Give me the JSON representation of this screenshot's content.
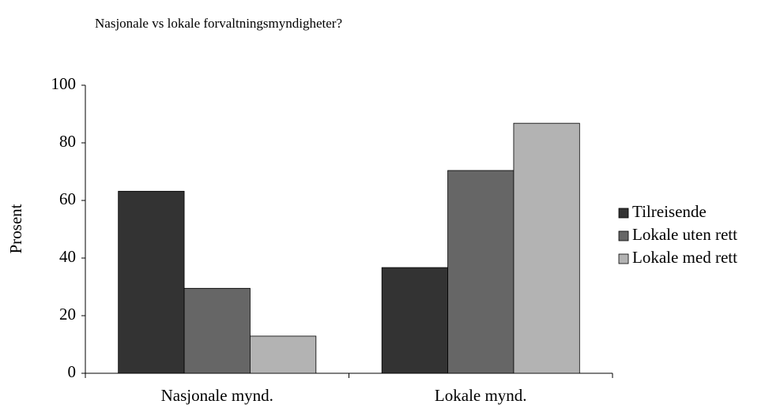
{
  "chart_data": {
    "type": "bar",
    "title": "Nasjonale vs lokale forvaltningsmyndigheter?",
    "y_label": "Prosent",
    "categories": [
      "Nasjonale mynd.",
      "Lokale mynd."
    ],
    "series": [
      {
        "name": "Tilreisende",
        "color": "#333333",
        "values": [
          63.2,
          36.7
        ]
      },
      {
        "name": "Lokale uten rett",
        "color": "#666666",
        "values": [
          29.5,
          70.4
        ]
      },
      {
        "name": "Lokale med rett",
        "color": "#b3b3b3",
        "values": [
          12.9,
          86.8
        ]
      }
    ],
    "ylim": [
      0,
      100
    ],
    "yticks": [
      0,
      20,
      40,
      60,
      80,
      100
    ],
    "grid": false,
    "legend": "right"
  }
}
